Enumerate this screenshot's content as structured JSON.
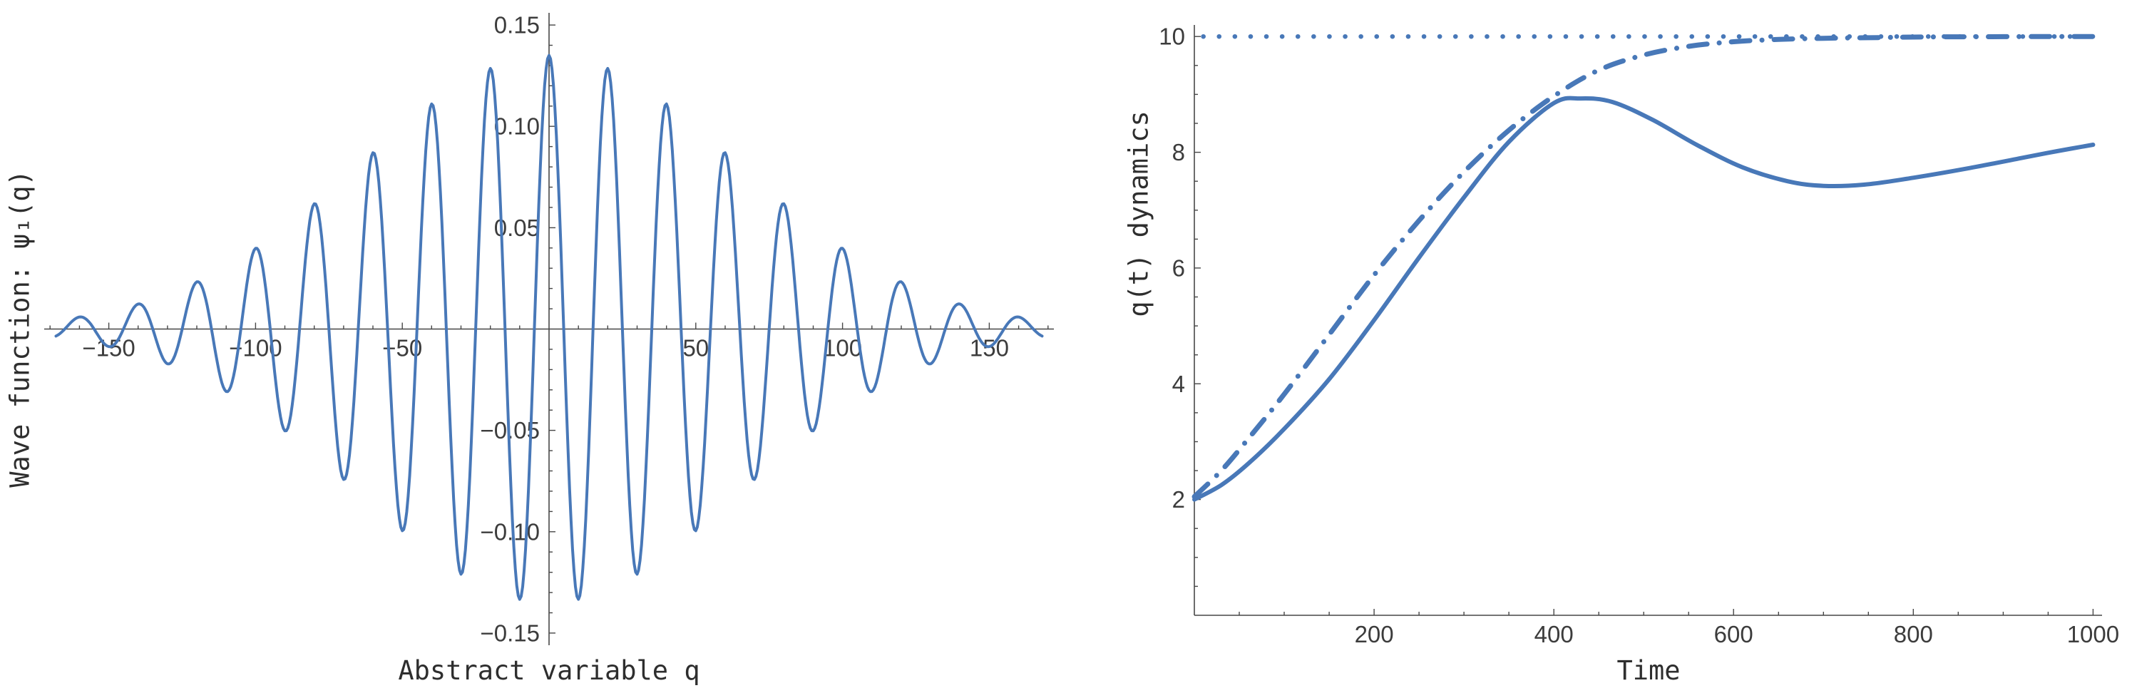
{
  "page": {
    "background": "#ffffff"
  },
  "style": {
    "series_blue": "#4878B8",
    "axis_color": "#474747",
    "tick_label_color": "#3c3c3c",
    "label_color": "#2e2e2e"
  },
  "chart_data": [
    {
      "id": "wave-function-plot",
      "type": "line",
      "title": "",
      "xlabel": "Abstract variable q",
      "ylabel": "Wave function: ψ₁(q)",
      "axes_mode": "center",
      "grid": false,
      "legend": "none",
      "xlim": [
        -172,
        172
      ],
      "ylim": [
        -0.156,
        0.156
      ],
      "xticks": [
        -150,
        -100,
        -50,
        50,
        100,
        150
      ],
      "xtick_labels": [
        "−150",
        "−100",
        "−50",
        "50",
        "100",
        "150"
      ],
      "x_minor_step": 10,
      "yticks": [
        -0.15,
        -0.1,
        -0.05,
        0.05,
        0.1,
        0.15
      ],
      "ytick_labels": [
        "−0.15",
        "−0.10",
        "−0.05",
        "0.05",
        "0.10",
        "0.15"
      ],
      "y_minor_step": 0.01,
      "series": [
        {
          "name": "wave-packet",
          "style": "solid",
          "color": "#4878B8",
          "model": "gaussian_wave_packet",
          "amplitude": 0.135,
          "envelope_sigma": 64,
          "wavelength": 20,
          "center": 0,
          "x_range": [
            -168,
            168
          ],
          "description": "ψ₁(q) ≈ 0.135·exp(−q²/(2·64²))·cos(2πq/20), oscillations peak ±0.135 near q=0 and decay toward ±170"
        }
      ]
    },
    {
      "id": "dynamics-plot",
      "type": "line",
      "title": "",
      "xlabel": "Time",
      "ylabel": "q(t) dynamics",
      "axes_mode": "corner",
      "grid": false,
      "legend": "none",
      "xlim": [
        0,
        1010
      ],
      "ylim": [
        0,
        10.2
      ],
      "xticks": [
        200,
        400,
        600,
        800,
        1000
      ],
      "xtick_labels": [
        "200",
        "400",
        "600",
        "800",
        "1000"
      ],
      "x_minor_step": 50,
      "yticks": [
        2,
        4,
        6,
        8,
        10
      ],
      "ytick_labels": [
        "2",
        "4",
        "6",
        "8",
        "10"
      ],
      "y_minor_step": 0.5,
      "series": [
        {
          "name": "dotted-constant-10",
          "style": "dotted",
          "color": "#4878B8",
          "smooth": false,
          "points": [
            [
              10,
              10
            ],
            [
              1000,
              10
            ]
          ]
        },
        {
          "name": "dash-dotted-relaxation",
          "style": "dashdot",
          "color": "#4878B8",
          "smooth": true,
          "points": [
            [
              0,
              2.05
            ],
            [
              30,
              2.5
            ],
            [
              60,
              3.05
            ],
            [
              100,
              3.82
            ],
            [
              150,
              4.85
            ],
            [
              200,
              5.88
            ],
            [
              250,
              6.82
            ],
            [
              300,
              7.66
            ],
            [
              350,
              8.38
            ],
            [
              400,
              8.97
            ],
            [
              450,
              9.42
            ],
            [
              500,
              9.68
            ],
            [
              550,
              9.83
            ],
            [
              600,
              9.91
            ],
            [
              650,
              9.95
            ],
            [
              700,
              9.97
            ],
            [
              750,
              9.98
            ],
            [
              800,
              9.99
            ],
            [
              850,
              9.995
            ],
            [
              900,
              9.998
            ],
            [
              950,
              10.0
            ],
            [
              1000,
              10.0
            ]
          ]
        },
        {
          "name": "solid-damped-overshoot",
          "style": "solid",
          "color": "#4878B8",
          "smooth": true,
          "points": [
            [
              0,
              2.0
            ],
            [
              30,
              2.25
            ],
            [
              60,
              2.62
            ],
            [
              100,
              3.22
            ],
            [
              150,
              4.08
            ],
            [
              200,
              5.1
            ],
            [
              250,
              6.18
            ],
            [
              300,
              7.22
            ],
            [
              350,
              8.18
            ],
            [
              400,
              8.85
            ],
            [
              430,
              8.93
            ],
            [
              465,
              8.87
            ],
            [
              510,
              8.56
            ],
            [
              560,
              8.12
            ],
            [
              610,
              7.74
            ],
            [
              660,
              7.5
            ],
            [
              700,
              7.42
            ],
            [
              745,
              7.44
            ],
            [
              800,
              7.56
            ],
            [
              860,
              7.72
            ],
            [
              920,
              7.9
            ],
            [
              960,
              8.02
            ],
            [
              1000,
              8.13
            ]
          ]
        }
      ]
    }
  ]
}
